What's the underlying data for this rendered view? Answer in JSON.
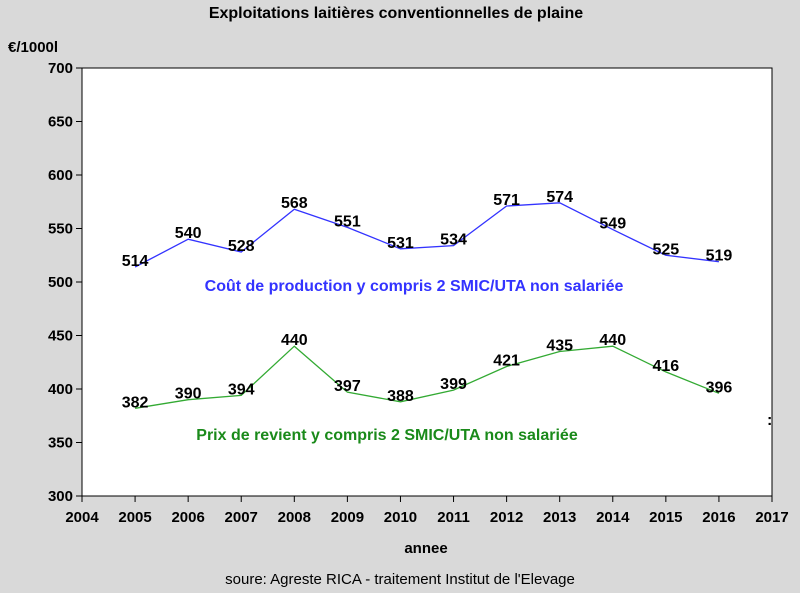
{
  "chart_data": {
    "type": "line",
    "title": "Exploitations laitières conventionnelles de plaine",
    "ylabel": "€/1000l",
    "xlabel": "annee",
    "source": "soure: Agreste RICA - traitement Institut de l'Elevage",
    "trailing_mark": ":",
    "xlim": [
      2004,
      2017
    ],
    "ylim": [
      300,
      700
    ],
    "xticks": [
      2004,
      2005,
      2006,
      2007,
      2008,
      2009,
      2010,
      2011,
      2012,
      2013,
      2014,
      2015,
      2016,
      2017
    ],
    "yticks": [
      300,
      350,
      400,
      450,
      500,
      550,
      600,
      650,
      700
    ],
    "grid": false,
    "x": [
      2005,
      2006,
      2007,
      2008,
      2009,
      2010,
      2011,
      2012,
      2013,
      2014,
      2015,
      2016
    ],
    "series": [
      {
        "name": "Coût de production y compris 2 SMIC/UTA non salariée",
        "color": "#3333ff",
        "values": [
          514,
          540,
          528,
          568,
          551,
          531,
          534,
          571,
          574,
          549,
          525,
          519
        ]
      },
      {
        "name": "Prix de revient y compris 2 SMIC/UTA non salariée",
        "color": "#33aa33",
        "values": [
          382,
          390,
          394,
          440,
          397,
          388,
          399,
          421,
          435,
          440,
          416,
          396
        ]
      }
    ]
  }
}
